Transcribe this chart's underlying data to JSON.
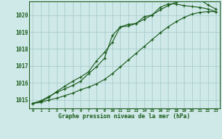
{
  "background_color": "#cfe8e8",
  "grid_color": "#a8cccc",
  "line_color": "#1a5c1a",
  "title": "Graphe pression niveau de la mer (hPa)",
  "ylim": [
    1014.5,
    1020.8
  ],
  "yticks": [
    1015,
    1016,
    1017,
    1018,
    1019,
    1020
  ],
  "xlim": [
    -0.5,
    23.5
  ],
  "xticks": [
    0,
    1,
    2,
    3,
    4,
    5,
    6,
    7,
    8,
    9,
    10,
    11,
    12,
    13,
    14,
    15,
    16,
    17,
    18,
    19,
    20,
    21,
    22,
    23
  ],
  "series": [
    {
      "x": [
        0,
        1,
        2,
        3,
        4,
        5,
        6,
        7,
        8,
        9,
        10,
        11,
        12,
        13,
        14,
        15,
        16,
        17,
        18,
        19,
        20,
        21,
        22,
        23
      ],
      "y": [
        1014.8,
        1014.9,
        1015.15,
        1015.5,
        1015.8,
        1016.1,
        1016.35,
        1016.65,
        1017.3,
        1017.8,
        1018.4,
        1019.3,
        1019.35,
        1019.5,
        1019.75,
        1020.0,
        1020.3,
        1020.55,
        1020.75,
        1021.0,
        1021.1,
        1020.9,
        1020.6,
        1020.35
      ]
    },
    {
      "x": [
        0,
        1,
        2,
        3,
        4,
        5,
        6,
        7,
        8,
        9,
        10,
        11,
        12,
        13,
        14,
        15,
        16,
        17,
        18,
        19,
        20,
        21,
        22,
        23
      ],
      "y": [
        1014.8,
        1014.95,
        1015.2,
        1015.45,
        1015.65,
        1015.85,
        1016.1,
        1016.55,
        1016.95,
        1017.45,
        1018.8,
        1019.3,
        1019.45,
        1019.5,
        1019.9,
        1020.0,
        1020.45,
        1020.65,
        1020.65,
        1020.55,
        1020.5,
        1020.45,
        1020.35,
        1020.2
      ]
    },
    {
      "x": [
        0,
        1,
        2,
        3,
        4,
        5,
        6,
        7,
        8,
        9,
        10,
        11,
        12,
        13,
        14,
        15,
        16,
        17,
        18,
        19,
        20,
        21,
        22,
        23
      ],
      "y": [
        1014.8,
        1014.85,
        1015.0,
        1015.1,
        1015.25,
        1015.4,
        1015.6,
        1015.75,
        1015.95,
        1016.2,
        1016.55,
        1016.95,
        1017.35,
        1017.75,
        1018.15,
        1018.55,
        1018.95,
        1019.3,
        1019.6,
        1019.85,
        1020.05,
        1020.15,
        1020.2,
        1020.2
      ]
    }
  ]
}
